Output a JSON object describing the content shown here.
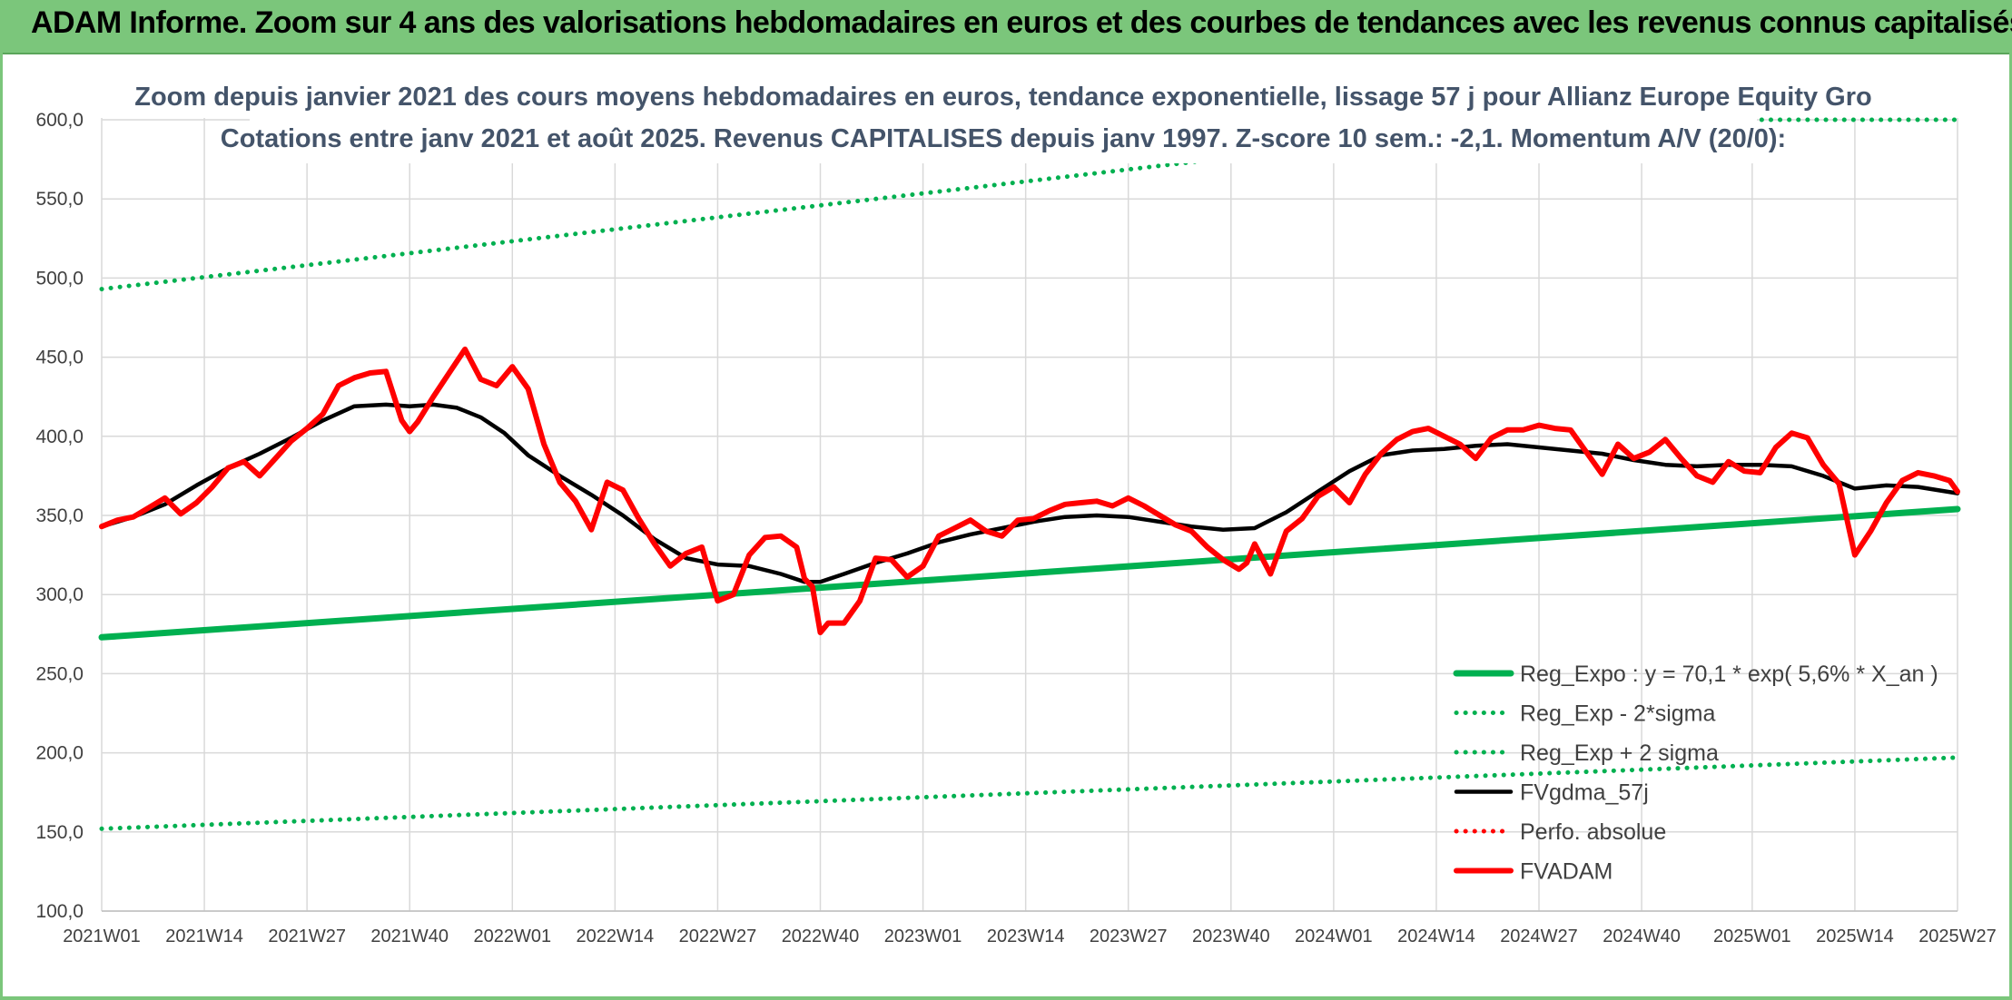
{
  "header": {
    "title": "ADAM Informe. Zoom sur 4 ans des valorisations hebdomadaires en euros et des courbes de tendances avec les revenus connus capitalisés"
  },
  "colors": {
    "header_bg": "#7bc67b",
    "green": "#00b050",
    "black": "#000000",
    "red": "#ff0000",
    "grid": "#d9d9d9",
    "title_text": "#44546a"
  },
  "chart_data": {
    "type": "line",
    "title_lines": [
      "Zoom depuis janvier 2021 des cours moyens hebdomadaires en euros, tendance exponentielle, lissage 57 j pour Allianz Europe Equity Gro",
      "Cotations entre janv 2021 et août 2025. Revenus CAPITALISES depuis janv 1997. Z-score 10 sem.: -2,1. Momentum A/V (20/0):"
    ],
    "x_unit": "week index starting at 2021W01 (0)",
    "x_tick_labels": [
      "2021W01",
      "2021W14",
      "2021W27",
      "2021W40",
      "2022W01",
      "2022W14",
      "2022W27",
      "2022W40",
      "2023W01",
      "2023W14",
      "2023W27",
      "2023W40",
      "2024W01",
      "2024W14",
      "2024W27",
      "2024W40",
      "2025W01",
      "2025W14",
      "2025W27"
    ],
    "x_tick_positions": [
      0,
      13,
      26,
      39,
      52,
      65,
      78,
      91,
      104,
      117,
      130,
      143,
      156,
      169,
      182,
      195,
      209,
      222,
      235
    ],
    "xlim": [
      0,
      235
    ],
    "ylim": [
      100,
      600
    ],
    "y_ticks": [
      100,
      150,
      200,
      250,
      300,
      350,
      400,
      450,
      500,
      550,
      600
    ],
    "y_tick_labels": [
      "100,0",
      "150,0",
      "200,0",
      "250,0",
      "300,0",
      "350,0",
      "400,0",
      "450,0",
      "500,0",
      "550,0",
      "600,0"
    ],
    "grid": true,
    "legend_position": "bottom-right",
    "series": [
      {
        "name": "Reg_Expo : y = 70,1 * exp( 5,6% *  X_an )",
        "style": "solid-thick",
        "color": "#00b050",
        "x": [
          0,
          235
        ],
        "y": [
          273,
          354
        ]
      },
      {
        "name": "Reg_Exp - 2*sigma",
        "style": "dotted",
        "color": "#00b050",
        "x": [
          0,
          235
        ],
        "y": [
          152,
          197
        ]
      },
      {
        "name": "Reg_Exp + 2 sigma",
        "style": "dotted",
        "color": "#00b050",
        "x": [
          0,
          141,
          210,
          235
        ],
        "y": [
          493,
          575,
          600,
          600
        ]
      },
      {
        "name": "FVgdma_57j",
        "style": "solid",
        "color": "#000000",
        "x": [
          0,
          4,
          8,
          12,
          16,
          20,
          24,
          28,
          32,
          36,
          39,
          42,
          45,
          48,
          51,
          54,
          58,
          62,
          66,
          70,
          74,
          78,
          82,
          86,
          89,
          91,
          94,
          98,
          102,
          106,
          110,
          114,
          118,
          122,
          126,
          130,
          134,
          138,
          142,
          146,
          150,
          154,
          158,
          162,
          166,
          170,
          174,
          178,
          182,
          186,
          190,
          194,
          198,
          202,
          206,
          210,
          214,
          218,
          222,
          226,
          230,
          235
        ],
        "y": [
          343,
          349,
          357,
          369,
          380,
          389,
          399,
          410,
          419,
          420,
          419,
          420,
          418,
          412,
          402,
          388,
          375,
          363,
          350,
          335,
          323,
          319,
          318,
          313,
          308,
          308,
          313,
          320,
          326,
          333,
          338,
          342,
          346,
          349,
          350,
          349,
          346,
          343,
          341,
          342,
          352,
          365,
          378,
          388,
          391,
          392,
          394,
          395,
          393,
          391,
          389,
          385,
          382,
          381,
          382,
          382,
          381,
          375,
          367,
          369,
          368,
          364
        ]
      },
      {
        "name": "Perfo. absolue",
        "style": "dotted",
        "color": "#ff0000",
        "x": [],
        "y": []
      },
      {
        "name": "FVADAM",
        "style": "solid-thick",
        "color": "#ff0000",
        "x": [
          0,
          2,
          4,
          6,
          8,
          10,
          12,
          14,
          16,
          18,
          20,
          22,
          24,
          26,
          28,
          30,
          32,
          34,
          36,
          38,
          39,
          40,
          42,
          44,
          46,
          48,
          50,
          52,
          54,
          56,
          58,
          60,
          62,
          64,
          66,
          68,
          70,
          72,
          74,
          76,
          78,
          80,
          82,
          84,
          86,
          88,
          89,
          90,
          91,
          92,
          94,
          96,
          98,
          100,
          102,
          104,
          106,
          108,
          110,
          112,
          114,
          116,
          118,
          120,
          122,
          124,
          126,
          128,
          130,
          132,
          134,
          136,
          138,
          140,
          142,
          144,
          145,
          146,
          148,
          150,
          152,
          154,
          156,
          158,
          160,
          162,
          164,
          166,
          168,
          170,
          172,
          174,
          176,
          178,
          180,
          182,
          184,
          186,
          188,
          190,
          192,
          194,
          196,
          198,
          200,
          202,
          204,
          206,
          208,
          210,
          212,
          214,
          216,
          218,
          220,
          222,
          224,
          226,
          228,
          230,
          232,
          234,
          235
        ],
        "y": [
          343,
          347,
          349,
          355,
          361,
          351,
          358,
          368,
          380,
          384,
          375,
          386,
          397,
          405,
          414,
          432,
          437,
          440,
          441,
          410,
          403,
          409,
          425,
          440,
          455,
          436,
          432,
          444,
          430,
          395,
          371,
          359,
          341,
          371,
          366,
          348,
          332,
          318,
          326,
          330,
          296,
          300,
          325,
          336,
          337,
          330,
          310,
          305,
          276,
          282,
          282,
          296,
          323,
          322,
          311,
          318,
          337,
          342,
          347,
          340,
          337,
          347,
          348,
          353,
          357,
          358,
          359,
          356,
          361,
          356,
          350,
          344,
          340,
          330,
          322,
          316,
          320,
          332,
          313,
          340,
          348,
          362,
          368,
          358,
          376,
          389,
          398,
          403,
          405,
          400,
          395,
          386,
          399,
          404,
          404,
          407,
          405,
          404,
          390,
          376,
          395,
          386,
          390,
          398,
          386,
          375,
          371,
          384,
          378,
          377,
          393,
          402,
          399,
          382,
          370,
          325,
          340,
          358,
          372,
          377,
          375,
          372,
          365
        ]
      }
    ]
  }
}
